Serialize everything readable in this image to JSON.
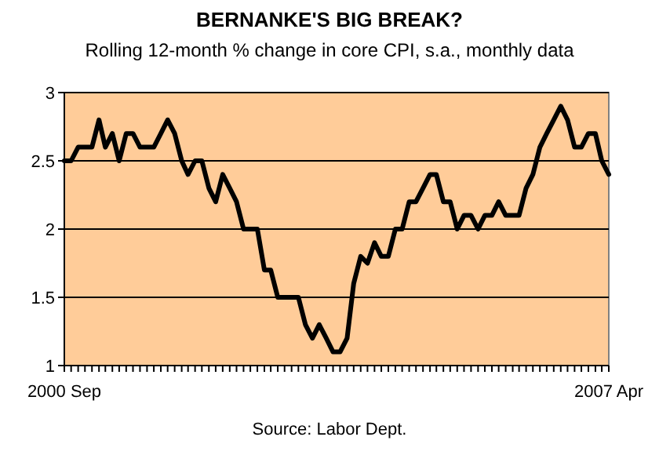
{
  "chart_data": {
    "type": "line",
    "title": "BERNANKE'S BIG BREAK?",
    "subtitle": "Rolling 12-month % change in core CPI, s.a., monthly data",
    "annotations": [
      "Source: Labor Dept."
    ],
    "xlim": [
      "2000-09",
      "2007-04"
    ],
    "xticks": [
      {
        "value": "2000-09",
        "label": "2000 Sep"
      },
      {
        "value": "2007-04",
        "label": "2007 Apr"
      }
    ],
    "ylim": [
      1,
      3
    ],
    "yticks": [
      1,
      1.5,
      2,
      2.5,
      3
    ],
    "grid": "y",
    "marker": "none",
    "line_style": "solid",
    "x": [
      "2000-09",
      "2000-10",
      "2000-11",
      "2000-12",
      "2001-01",
      "2001-02",
      "2001-03",
      "2001-04",
      "2001-05",
      "2001-06",
      "2001-07",
      "2001-08",
      "2001-09",
      "2001-10",
      "2001-11",
      "2001-12",
      "2002-01",
      "2002-02",
      "2002-03",
      "2002-04",
      "2002-05",
      "2002-06",
      "2002-07",
      "2002-08",
      "2002-09",
      "2002-10",
      "2002-11",
      "2002-12",
      "2003-01",
      "2003-02",
      "2003-03",
      "2003-04",
      "2003-05",
      "2003-06",
      "2003-07",
      "2003-08",
      "2003-09",
      "2003-10",
      "2003-11",
      "2003-12",
      "2004-01",
      "2004-02",
      "2004-03",
      "2004-04",
      "2004-05",
      "2004-06",
      "2004-07",
      "2004-08",
      "2004-09",
      "2004-10",
      "2004-11",
      "2004-12",
      "2005-01",
      "2005-02",
      "2005-03",
      "2005-04",
      "2005-05",
      "2005-06",
      "2005-07",
      "2005-08",
      "2005-09",
      "2005-10",
      "2005-11",
      "2005-12",
      "2006-01",
      "2006-02",
      "2006-03",
      "2006-04",
      "2006-05",
      "2006-06",
      "2006-07",
      "2006-08",
      "2006-09",
      "2006-10",
      "2006-11",
      "2006-12",
      "2007-01",
      "2007-02",
      "2007-03",
      "2007-04"
    ],
    "series": [
      {
        "color": "#000000",
        "values": [
          2.5,
          2.5,
          2.6,
          2.6,
          2.6,
          2.8,
          2.6,
          2.7,
          2.5,
          2.7,
          2.7,
          2.6,
          2.6,
          2.6,
          2.7,
          2.8,
          2.7,
          2.5,
          2.4,
          2.5,
          2.5,
          2.3,
          2.2,
          2.4,
          2.3,
          2.2,
          2.0,
          2.0,
          2.0,
          1.7,
          1.7,
          1.5,
          1.5,
          1.5,
          1.5,
          1.3,
          1.2,
          1.3,
          1.2,
          1.1,
          1.1,
          1.2,
          1.6,
          1.8,
          1.75,
          1.9,
          1.8,
          1.8,
          2.0,
          2.0,
          2.2,
          2.2,
          2.3,
          2.4,
          2.4,
          2.2,
          2.2,
          2.0,
          2.1,
          2.1,
          2.0,
          2.1,
          2.1,
          2.2,
          2.1,
          2.1,
          2.1,
          2.3,
          2.4,
          2.6,
          2.7,
          2.8,
          2.9,
          2.8,
          2.6,
          2.6,
          2.7,
          2.7,
          2.5,
          2.4
        ]
      }
    ]
  }
}
